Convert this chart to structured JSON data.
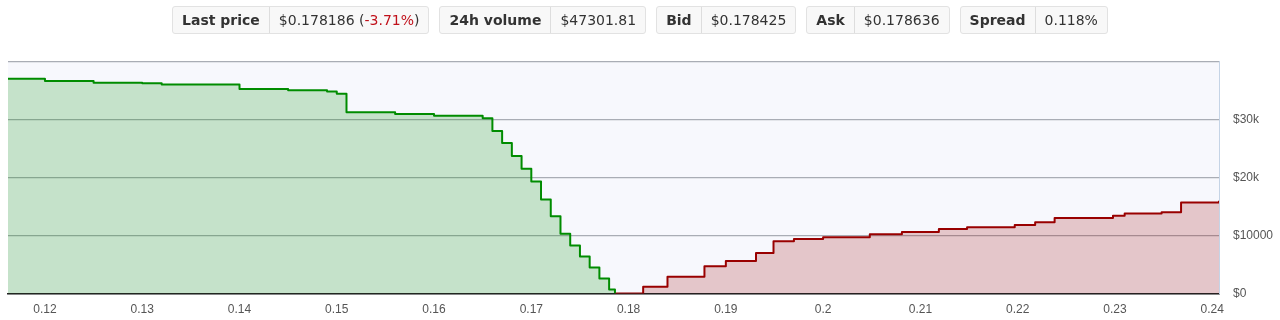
{
  "chart_data": {
    "type": "step",
    "annotations": [
      "Last price",
      "$0.178186 (-3.71%)",
      "24h volume",
      "$47301.81",
      "Bid",
      "$0.178425",
      "Ask",
      "$0.178636",
      "Spread",
      "0.118%"
    ],
    "series": [
      {
        "color": "#008c00",
        "x": [
          0.1162,
          0.12,
          0.125,
          0.13,
          0.132,
          0.14,
          0.145,
          0.149,
          0.15,
          0.151,
          0.156,
          0.16,
          0.165,
          0.166,
          0.167,
          0.168,
          0.169,
          0.17,
          0.171,
          0.172,
          0.173,
          0.174,
          0.175,
          0.176,
          0.177,
          0.178,
          0.1786
        ],
        "values": [
          37000,
          36600,
          36300,
          36200,
          36000,
          35200,
          35000,
          34800,
          34400,
          31200,
          30900,
          30600,
          30200,
          28000,
          25900,
          23700,
          21500,
          19300,
          16200,
          13300,
          10300,
          8300,
          6400,
          4500,
          2600,
          700,
          0
        ]
      },
      {
        "color": "#990000",
        "x": [
          0.1786,
          0.1815,
          0.184,
          0.1878,
          0.19,
          0.1931,
          0.1949,
          0.197,
          0.2,
          0.2048,
          0.2081,
          0.2119,
          0.2148,
          0.2197,
          0.2218,
          0.2238,
          0.2298,
          0.231,
          0.2348,
          0.2368,
          0.2407
        ],
        "values": [
          0,
          1200,
          2900,
          4700,
          5600,
          7000,
          9000,
          9400,
          9700,
          10200,
          10600,
          11100,
          11400,
          11800,
          12300,
          13000,
          13400,
          13800,
          14000,
          15700,
          16000
        ]
      }
    ],
    "xlim": [
      0.1162,
      0.2407
    ],
    "xticks": [
      0.12,
      0.13,
      0.14,
      0.15,
      0.16,
      0.17,
      0.18,
      0.19,
      0.2,
      0.21,
      0.22,
      0.23,
      0.24
    ],
    "ylim": [
      0,
      40000
    ],
    "yticks": [
      {
        "value": 0,
        "label": "$0"
      },
      {
        "value": 10000,
        "label": "$10000"
      },
      {
        "value": 20000,
        "label": "$20k"
      },
      {
        "value": 30000,
        "label": "$30k"
      },
      {
        "value": 40000,
        "label": null
      }
    ],
    "grid": "y"
  }
}
